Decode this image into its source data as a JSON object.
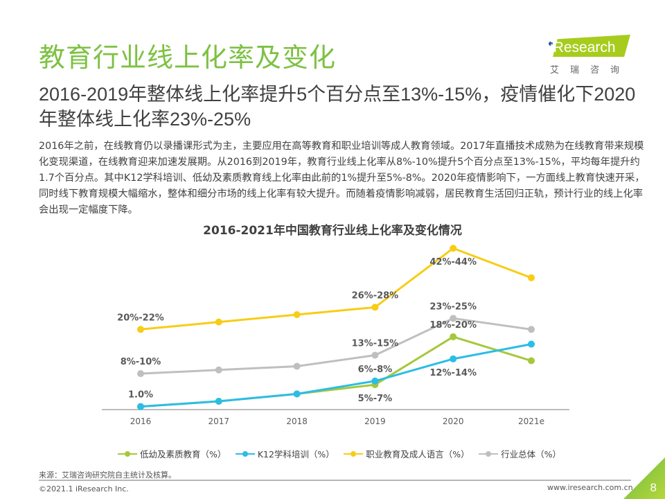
{
  "header": {
    "title": "教育行业线上化率及变化",
    "logo_text": "iResearch",
    "logo_cn": "艾瑞咨询",
    "subtitle": "2016-2019年整体线上化率提升5个百分点至13%-15%，疫情催化下2020年整体线上化率23%-25%"
  },
  "body_paragraph": "2016年之前，在线教育仍以录播课形式为主，主要应用在高等教育和职业培训等成人教育领域。2017年直播技术成熟为在线教育带来规模化变现渠道，在线教育迎来加速发展期。从2016到2019年，教育行业线上化率从8%-10%提升5个百分点至13%-15%，平均每年提升约1.7个百分点。其中K12学科培训、低幼及素质教育线上化率由此前的1%提升至5%-8%。2020年疫情影响下，一方面线上教育快速开采，同时线下教育规模大幅缩水，整体和细分市场的线上化率有较大提升。而随着疫情影响减弱，居民教育生活回归正轨，预计行业的线上化率会出现一定幅度下降。",
  "chart_data": {
    "type": "line",
    "title": "2016-2021年中国教育行业线上化率及变化情况",
    "xlabel": "",
    "ylabel": "",
    "categories": [
      "2016",
      "2017",
      "2018",
      "2019",
      "2020",
      "2021e"
    ],
    "ylim": [
      0,
      45
    ],
    "grid": false,
    "y_axis_visible": false,
    "legend_position": "bottom",
    "series": [
      {
        "name": "低幼及素质教育（%）",
        "color": "#a5c83b",
        "values": [
          1,
          1.5,
          3.5,
          6,
          19,
          12.5
        ],
        "labels": [
          "",
          "",
          "",
          "5%-7%",
          "18%-20%",
          ""
        ],
        "label_pos": [
          "",
          "",
          "",
          "below",
          "above",
          ""
        ]
      },
      {
        "name": "K12学科培训（%）",
        "color": "#2bbde6",
        "values": [
          1,
          1.5,
          3.5,
          7,
          13,
          17
        ],
        "labels": [
          "1.0%",
          "",
          "",
          "6%-8%",
          "12%-14%",
          ""
        ],
        "label_pos": [
          "above",
          "",
          "",
          "above",
          "below",
          ""
        ]
      },
      {
        "name": "职业教育及成人语言（%）",
        "color": "#f7cd15",
        "values": [
          21,
          23,
          25,
          27,
          43,
          35
        ],
        "labels": [
          "20%-22%",
          "",
          "",
          "26%-28%",
          "42%-44%",
          ""
        ],
        "label_pos": [
          "above",
          "",
          "",
          "above",
          "below",
          ""
        ]
      },
      {
        "name": "行业总体（%）",
        "color": "#bfbfbf",
        "values": [
          9,
          10,
          11,
          14,
          24,
          21
        ],
        "labels": [
          "8%-10%",
          "",
          "",
          "13%-15%",
          "23%-25%",
          ""
        ],
        "label_pos": [
          "above",
          "",
          "",
          "above",
          "above",
          ""
        ]
      }
    ]
  },
  "footer": {
    "source": "来源：艾瑞咨询研究院自主统计及核算。",
    "copyright": "©2021.1 iResearch Inc.",
    "url": "www.iresearch.com.cn",
    "page_number": "8"
  }
}
